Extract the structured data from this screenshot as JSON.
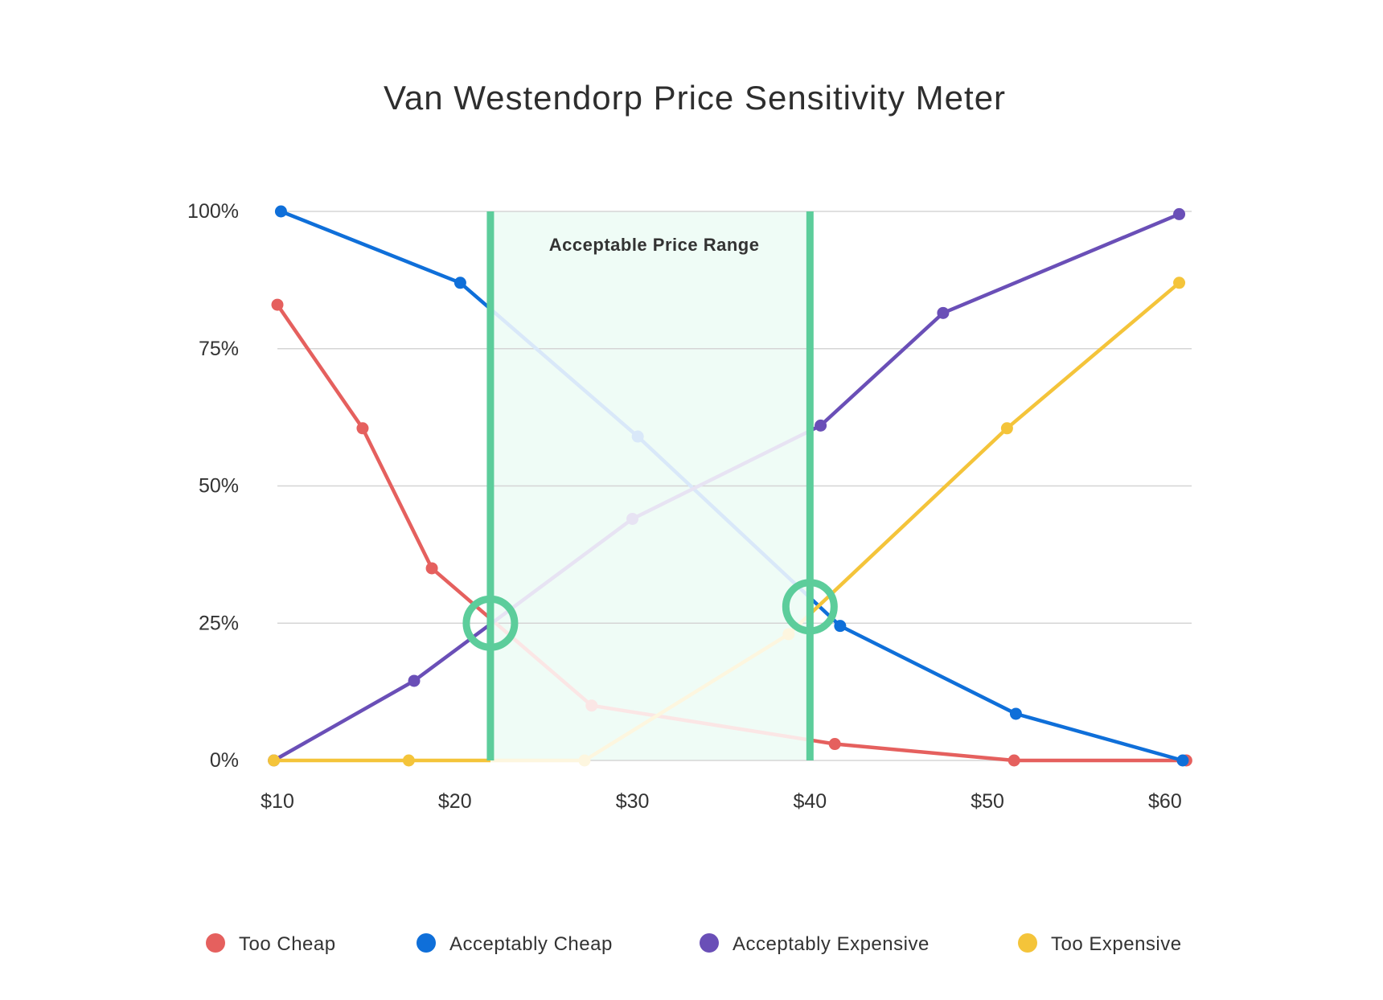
{
  "chart_data": {
    "type": "line",
    "title": "Van Westendorp Price Sensitivity Meter",
    "xlabel": "",
    "ylabel": "",
    "xlim": [
      10,
      61.5
    ],
    "ylim": [
      0,
      100
    ],
    "x_ticks": [
      10,
      20,
      30,
      40,
      50,
      60
    ],
    "x_tick_labels": [
      "$10",
      "$20",
      "$30",
      "$40",
      "$50",
      "$60"
    ],
    "y_ticks": [
      0,
      25,
      50,
      75,
      100
    ],
    "y_tick_labels": [
      "0%",
      "25%",
      "50%",
      "75%",
      "100%"
    ],
    "grid": true,
    "legend_position": "bottom",
    "series": [
      {
        "name": "Too Cheap",
        "color": "#e5605e",
        "points": [
          [
            10,
            83
          ],
          [
            14.8,
            60.5
          ],
          [
            18.7,
            35
          ],
          [
            27.7,
            10
          ],
          [
            41.4,
            3
          ],
          [
            51.5,
            0
          ],
          [
            61.2,
            0
          ]
        ]
      },
      {
        "name": "Acceptably Cheap",
        "color": "#0f6fd9",
        "points": [
          [
            10.2,
            100
          ],
          [
            20.3,
            87
          ],
          [
            30.3,
            59
          ],
          [
            41.7,
            24.5
          ],
          [
            51.6,
            8.5
          ],
          [
            61,
            0
          ]
        ]
      },
      {
        "name": "Acceptably Expensive",
        "color": "#6a4fb7",
        "points": [
          [
            9.8,
            0
          ],
          [
            17.7,
            14.5
          ],
          [
            30,
            44
          ],
          [
            40.6,
            61
          ],
          [
            47.5,
            81.5
          ],
          [
            60.8,
            99.5
          ]
        ]
      },
      {
        "name": "Too Expensive",
        "color": "#f4c43a",
        "points": [
          [
            9.8,
            0
          ],
          [
            17.4,
            0
          ],
          [
            27.3,
            0
          ],
          [
            38.8,
            23
          ],
          [
            51.1,
            60.5
          ],
          [
            60.8,
            87
          ]
        ]
      }
    ],
    "acceptable_range": {
      "label": "Acceptable Price Range",
      "from": 22,
      "to": 40,
      "color": "#5ccd9b"
    },
    "intersections": [
      [
        22,
        25
      ],
      [
        40,
        28
      ]
    ]
  }
}
